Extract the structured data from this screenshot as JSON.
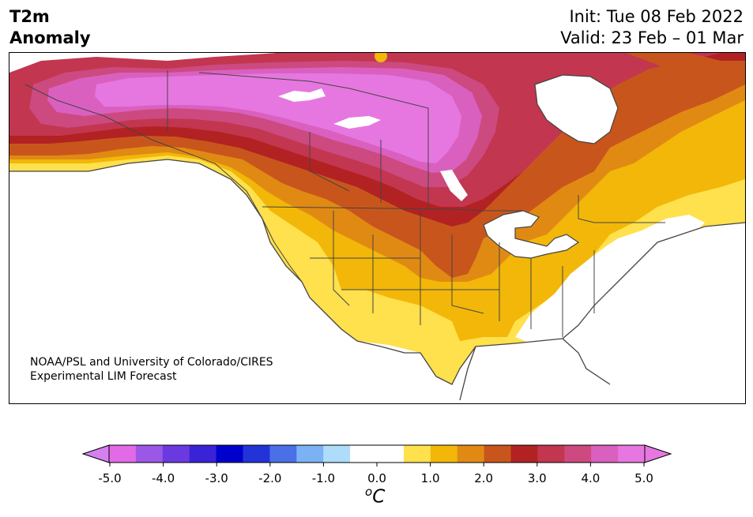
{
  "title": {
    "line1": "T2m",
    "line2": "Anomaly"
  },
  "init": "Init: Tue 08 Feb 2022",
  "valid": "Valid: 23 Feb – 01 Mar",
  "credit": {
    "line1": "NOAA/PSL and University of Colorado/CIRES",
    "line2": "Experimental LIM Forecast"
  },
  "colorbar": {
    "ticks": [
      "-5.0",
      "-4.0",
      "-3.0",
      "-2.0",
      "-1.0",
      "0.0",
      "1.0",
      "2.0",
      "3.0",
      "4.0",
      "5.0"
    ],
    "unit_sup": "o",
    "unit": "C",
    "colors": [
      "#e26ae6",
      "#9b57e6",
      "#6a3ae0",
      "#3a22d6",
      "#0000cc",
      "#2233d8",
      "#4a6fe6",
      "#7ab2f4",
      "#aedcfa",
      "#ffffff",
      "#ffffff",
      "#ffe04d",
      "#f2b709",
      "#e08a14",
      "#c8561c",
      "#b22222",
      "#c23650",
      "#cc4a80",
      "#da60c0",
      "#e677e0"
    ],
    "under_color": "#d67ff0",
    "over_color": "#e677e0"
  },
  "map": {
    "region": "North America",
    "anomaly_colors": {
      "0.5-1.0": "#ffe04d",
      "1.0-1.5": "#f2b709",
      "1.5-2.0": "#e08a14",
      "2.0-2.5": "#c8561c",
      "2.5-3.0": "#b22222",
      "3.0-3.5": "#c23650",
      "3.5-4.0": "#cc4a80",
      "4.0-4.5": "#da60c0",
      ">5.0": "#e677e0"
    }
  }
}
